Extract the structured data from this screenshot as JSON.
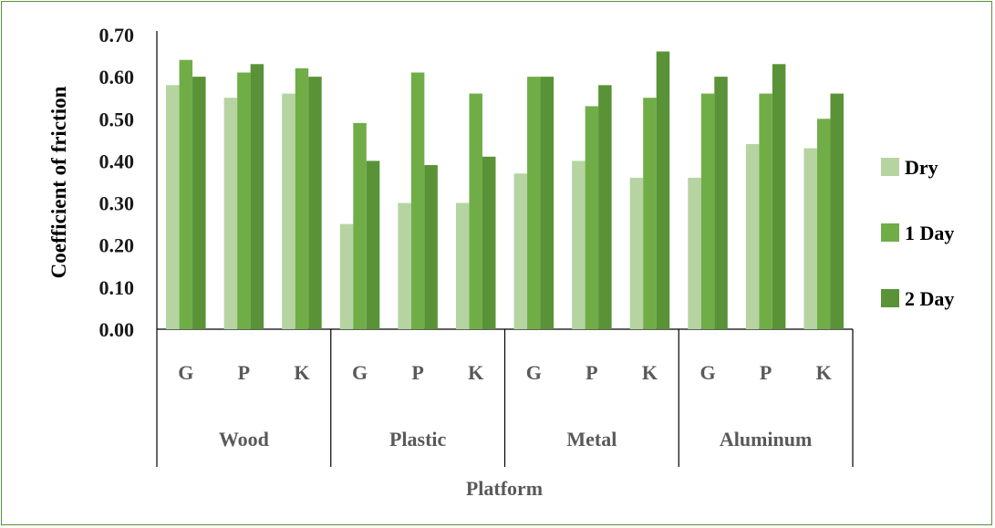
{
  "chart_data": {
    "type": "bar",
    "xlabel": "Platform",
    "ylabel": "Coefficient of friction",
    "ylim": [
      0,
      0.7
    ],
    "yticks": [
      "0.00",
      "0.10",
      "0.20",
      "0.30",
      "0.40",
      "0.50",
      "0.60",
      "0.70"
    ],
    "groups": [
      "Wood",
      "Plastic",
      "Metal",
      "Aluminum"
    ],
    "categories": [
      "G",
      "P",
      "K",
      "G",
      "P",
      "K",
      "G",
      "P",
      "K",
      "G",
      "P",
      "K"
    ],
    "series": [
      {
        "name": "Dry",
        "color": "#b5d4a2",
        "values": [
          0.58,
          0.55,
          0.56,
          0.25,
          0.3,
          0.3,
          0.37,
          0.4,
          0.36,
          0.36,
          0.44,
          0.43
        ]
      },
      {
        "name": "1 Day",
        "color": "#70ad47",
        "values": [
          0.64,
          0.61,
          0.62,
          0.49,
          0.61,
          0.56,
          0.6,
          0.53,
          0.55,
          0.56,
          0.56,
          0.5
        ]
      },
      {
        "name": "2 Day",
        "color": "#5a9237",
        "values": [
          0.6,
          0.63,
          0.6,
          0.4,
          0.39,
          0.41,
          0.6,
          0.58,
          0.66,
          0.6,
          0.63,
          0.56
        ]
      }
    ],
    "legend_position": "right",
    "grid": false
  }
}
